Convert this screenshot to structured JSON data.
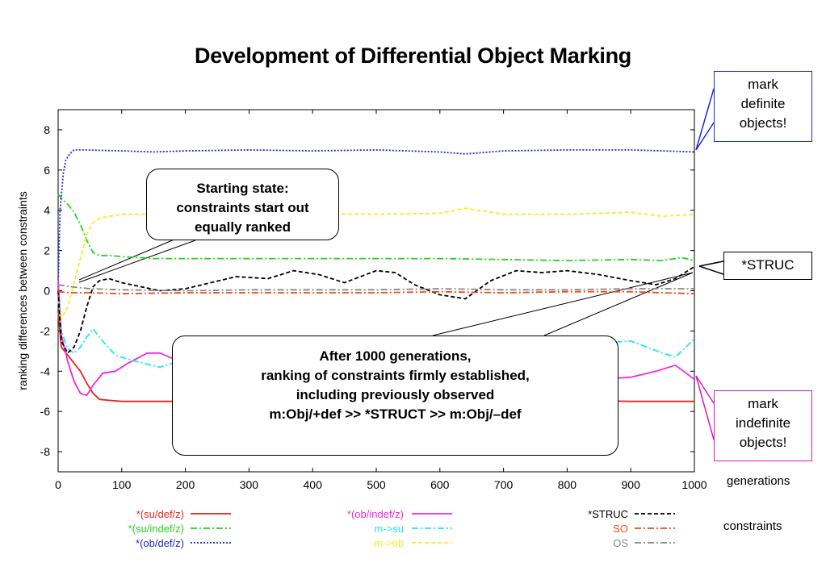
{
  "title": "Development of Differential Object Marking",
  "callouts": {
    "start": [
      "Starting state:",
      "constraints start out",
      "equally ranked"
    ],
    "after": [
      "After 1000 generations,",
      "ranking of constraints firmly established,",
      "including previously observed",
      "m:Obj/+def >> *STRUCT >> m:Obj/–def"
    ],
    "definite": [
      "mark",
      "definite",
      "objects!"
    ],
    "struc": "*STRUC",
    "indefinite": [
      "mark",
      "indefinite",
      "objects!"
    ]
  },
  "labels": {
    "generations": "generations",
    "constraints": "constraints"
  },
  "chart_data": {
    "type": "line",
    "ylabel": "ranking differences between constraints",
    "xlabel": "",
    "xlim": [
      0,
      1000
    ],
    "ylim": [
      -9,
      9
    ],
    "xticks": [
      0,
      100,
      200,
      300,
      400,
      500,
      600,
      700,
      800,
      900,
      1000
    ],
    "yticks": [
      8,
      6,
      4,
      2,
      0,
      -2,
      -4,
      -6,
      -8
    ],
    "grid": false,
    "legend": "bottom",
    "series": [
      {
        "name": "*(su/def/z)",
        "color": "#e8231d",
        "dash": "solid",
        "x": [
          0,
          5,
          15,
          25,
          35,
          45,
          55,
          65,
          80,
          100,
          150,
          200,
          300,
          400,
          500,
          600,
          700,
          800,
          900,
          950,
          1000
        ],
        "y": [
          -1.0,
          -2.8,
          -3.2,
          -3.6,
          -4.0,
          -4.6,
          -5.1,
          -5.4,
          -5.45,
          -5.5,
          -5.5,
          -5.5,
          -5.45,
          -5.45,
          -5.45,
          -5.45,
          -5.4,
          -5.45,
          -5.5,
          -5.5,
          -5.5
        ]
      },
      {
        "name": "*(su/indef/z)",
        "color": "#22d41d",
        "dash": "dashdot",
        "x": [
          0,
          5,
          15,
          25,
          35,
          45,
          55,
          65,
          80,
          100,
          150,
          200,
          300,
          400,
          500,
          600,
          700,
          800,
          900,
          950,
          980,
          1000
        ],
        "y": [
          4.8,
          4.6,
          4.3,
          3.9,
          3.3,
          2.5,
          1.9,
          1.75,
          1.75,
          1.7,
          1.6,
          1.6,
          1.6,
          1.6,
          1.6,
          1.6,
          1.55,
          1.5,
          1.55,
          1.5,
          1.65,
          1.5
        ]
      },
      {
        "name": "*(ob/def/z)",
        "color": "#1a2ad8",
        "dash": "dotted",
        "x": [
          0,
          3,
          8,
          12,
          18,
          25,
          40,
          100,
          150,
          200,
          300,
          400,
          500,
          600,
          640,
          700,
          800,
          900,
          950,
          1000
        ],
        "y": [
          0.2,
          4.0,
          5.8,
          6.5,
          6.8,
          7.0,
          7.0,
          6.95,
          6.9,
          6.95,
          7.0,
          6.95,
          7.0,
          6.9,
          6.8,
          6.95,
          7.0,
          7.0,
          6.95,
          6.9
        ]
      },
      {
        "name": "*(ob/indef/z)",
        "color": "#ef2ae3",
        "dash": "solid",
        "x": [
          0,
          5,
          15,
          25,
          35,
          45,
          55,
          70,
          90,
          110,
          140,
          160,
          190,
          230,
          300,
          350,
          400,
          450,
          500,
          550,
          600,
          640,
          680,
          740,
          800,
          850,
          900,
          940,
          970,
          1000
        ],
        "y": [
          0.6,
          -2.2,
          -3.5,
          -4.5,
          -5.1,
          -5.2,
          -4.7,
          -4.1,
          -4.0,
          -3.6,
          -3.1,
          -3.1,
          -3.5,
          -3.7,
          -3.5,
          -3.6,
          -3.8,
          -4.0,
          -3.6,
          -3.2,
          -3.0,
          -2.6,
          -3.8,
          -4.2,
          -4.3,
          -4.4,
          -4.3,
          -4.0,
          -3.7,
          -4.4
        ]
      },
      {
        "name": "m->su",
        "color": "#23e6ec",
        "dash": "dashdot",
        "x": [
          0,
          5,
          15,
          25,
          35,
          45,
          55,
          70,
          90,
          120,
          160,
          200,
          250,
          300,
          350,
          400,
          450,
          500,
          550,
          600,
          650,
          700,
          750,
          800,
          850,
          900,
          950,
          970,
          1000
        ],
        "y": [
          -0.4,
          -2.0,
          -2.9,
          -3.1,
          -2.8,
          -2.3,
          -1.9,
          -2.5,
          -3.2,
          -3.5,
          -3.8,
          -3.4,
          -2.9,
          -2.7,
          -2.6,
          -2.5,
          -2.8,
          -2.7,
          -3.0,
          -2.6,
          -2.8,
          -2.5,
          -2.7,
          -2.5,
          -2.6,
          -2.5,
          -3.1,
          -3.3,
          -2.4
        ]
      },
      {
        "name": "m->ob",
        "color": "#f0f01e",
        "dash": "dashed",
        "x": [
          0,
          5,
          15,
          25,
          35,
          45,
          55,
          65,
          80,
          100,
          150,
          200,
          300,
          400,
          500,
          600,
          640,
          700,
          800,
          900,
          950,
          1000
        ],
        "y": [
          -0.3,
          -1.4,
          -0.8,
          0.4,
          1.6,
          2.8,
          3.4,
          3.6,
          3.7,
          3.8,
          3.8,
          3.75,
          3.8,
          3.85,
          3.8,
          3.85,
          4.1,
          3.8,
          3.8,
          3.9,
          3.7,
          3.8
        ]
      },
      {
        "name": "*STRUC",
        "color": "#000000",
        "dash": "dashed",
        "x": [
          0,
          5,
          15,
          25,
          35,
          45,
          55,
          65,
          80,
          100,
          130,
          160,
          200,
          240,
          280,
          330,
          370,
          410,
          450,
          500,
          530,
          560,
          600,
          640,
          680,
          720,
          760,
          800,
          850,
          900,
          940,
          970,
          1000
        ],
        "y": [
          0.0,
          -2.5,
          -3.1,
          -2.8,
          -2.0,
          -0.8,
          0.2,
          0.5,
          0.6,
          0.4,
          0.2,
          0.0,
          0.1,
          0.4,
          0.7,
          0.6,
          1.0,
          0.8,
          0.4,
          1.0,
          0.9,
          0.3,
          -0.2,
          -0.4,
          0.5,
          1.0,
          0.9,
          1.0,
          0.8,
          0.5,
          0.3,
          0.6,
          1.2
        ]
      },
      {
        "name": "SO",
        "color": "#f04a1a",
        "dash": "dashdot",
        "x": [
          0,
          20,
          50,
          100,
          200,
          300,
          400,
          500,
          600,
          700,
          800,
          900,
          950,
          1000
        ],
        "y": [
          -0.05,
          -0.1,
          -0.1,
          -0.15,
          -0.1,
          -0.1,
          -0.1,
          -0.1,
          -0.05,
          -0.1,
          -0.05,
          -0.05,
          -0.1,
          -0.15
        ]
      },
      {
        "name": "OS",
        "color": "#888888",
        "dash": "dashdot",
        "x": [
          0,
          20,
          50,
          100,
          200,
          300,
          400,
          500,
          600,
          700,
          800,
          900,
          1000
        ],
        "y": [
          0.3,
          0.2,
          0.1,
          0.05,
          0.0,
          0.05,
          0.05,
          0.05,
          0.1,
          0.05,
          0.05,
          0.1,
          0.1
        ]
      }
    ]
  }
}
